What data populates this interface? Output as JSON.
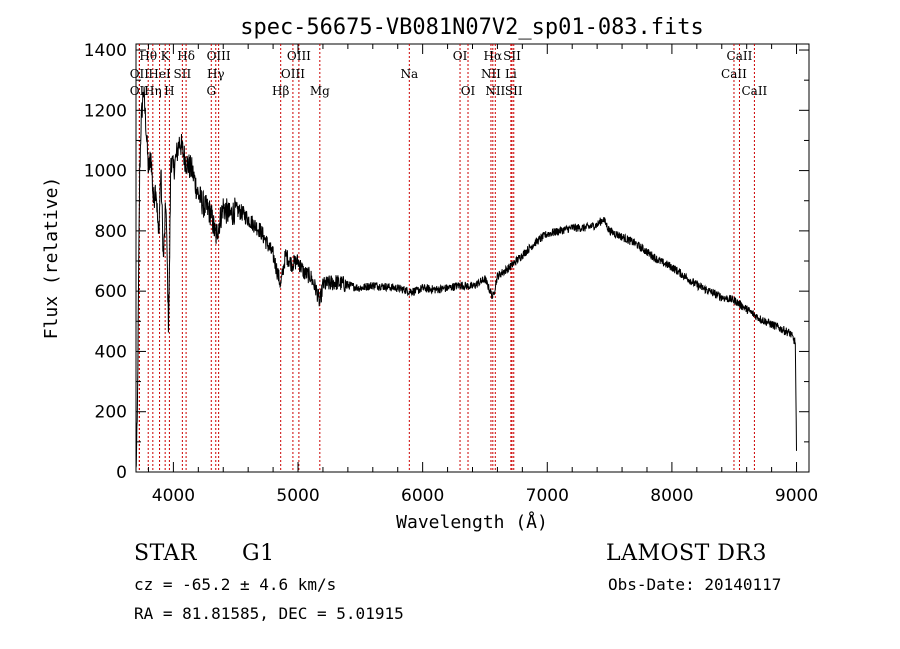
{
  "chart_data": {
    "type": "line",
    "title": "spec-56675-VB081N07V2_sp01-083.fits",
    "xlabel": "Wavelength (Å)",
    "ylabel": "Flux (relative)",
    "xlim": [
      3700,
      9100
    ],
    "ylim": [
      0,
      1420
    ],
    "xticks": [
      4000,
      5000,
      6000,
      7000,
      8000,
      9000
    ],
    "yticks": [
      0,
      200,
      400,
      600,
      800,
      1000,
      1200,
      1400
    ],
    "series": [
      {
        "name": "spectrum",
        "x": [
          3700,
          3710,
          3720,
          3730,
          3740,
          3760,
          3780,
          3800,
          3820,
          3840,
          3860,
          3880,
          3900,
          3920,
          3940,
          3960,
          3968,
          3980,
          4000,
          4050,
          4100,
          4150,
          4200,
          4250,
          4300,
          4340,
          4400,
          4450,
          4500,
          4550,
          4600,
          4650,
          4700,
          4750,
          4800,
          4861,
          4900,
          4950,
          5000,
          5050,
          5100,
          5150,
          5175,
          5200,
          5300,
          5400,
          5500,
          5600,
          5700,
          5800,
          5893,
          5950,
          6000,
          6100,
          6200,
          6300,
          6400,
          6500,
          6563,
          6600,
          6700,
          6800,
          6900,
          7000,
          7100,
          7200,
          7300,
          7400,
          7450,
          7500,
          7600,
          7700,
          7800,
          7900,
          8000,
          8100,
          8200,
          8300,
          8400,
          8500,
          8600,
          8700,
          8800,
          8900,
          8950,
          8990,
          9000
        ],
        "y": [
          0,
          150,
          600,
          1000,
          1150,
          1270,
          1150,
          1000,
          1050,
          900,
          950,
          780,
          1000,
          700,
          900,
          500,
          650,
          1050,
          1000,
          1100,
          1030,
          1000,
          920,
          880,
          860,
          780,
          880,
          850,
          870,
          860,
          840,
          820,
          800,
          760,
          720,
          620,
          720,
          690,
          700,
          660,
          650,
          600,
          560,
          620,
          630,
          620,
          610,
          620,
          615,
          610,
          600,
          600,
          610,
          605,
          610,
          620,
          615,
          640,
          580,
          650,
          680,
          720,
          760,
          790,
          800,
          810,
          810,
          820,
          840,
          800,
          780,
          760,
          730,
          700,
          680,
          650,
          620,
          600,
          580,
          570,
          540,
          510,
          490,
          470,
          460,
          430,
          70
        ]
      }
    ],
    "lines": [
      {
        "label": "Hθ",
        "wave": 3798,
        "row": 1
      },
      {
        "label": "OII",
        "wave": 3727,
        "row": 3
      },
      {
        "label": "OII",
        "wave": 3727,
        "row": 2
      },
      {
        "label": "Hη",
        "wave": 3835,
        "row": 3
      },
      {
        "label": "HeI",
        "wave": 3889,
        "row": 2
      },
      {
        "label": "K",
        "wave": 3934,
        "row": 1
      },
      {
        "label": "H",
        "wave": 3968,
        "row": 3
      },
      {
        "label": "SII",
        "wave": 4072,
        "row": 2
      },
      {
        "label": "Hδ",
        "wave": 4102,
        "row": 1
      },
      {
        "label": "OIII",
        "wave": 4363,
        "row": 1
      },
      {
        "label": "Hγ",
        "wave": 4340,
        "row": 2
      },
      {
        "label": "G",
        "wave": 4304,
        "row": 3
      },
      {
        "label": "Hβ",
        "wave": 4861,
        "row": 3
      },
      {
        "label": "OIII",
        "wave": 4959,
        "row": 2
      },
      {
        "label": "OIII",
        "wave": 5007,
        "row": 1
      },
      {
        "label": "Mg",
        "wave": 5175,
        "row": 3
      },
      {
        "label": "Na",
        "wave": 5893,
        "row": 2
      },
      {
        "label": "OI",
        "wave": 6300,
        "row": 1
      },
      {
        "label": "OI",
        "wave": 6364,
        "row": 3
      },
      {
        "label": "Hα",
        "wave": 6563,
        "row": 1
      },
      {
        "label": "NII",
        "wave": 6548,
        "row": 2
      },
      {
        "label": "NII",
        "wave": 6583,
        "row": 3
      },
      {
        "label": "SII",
        "wave": 6717,
        "row": 1
      },
      {
        "label": "Li",
        "wave": 6708,
        "row": 2
      },
      {
        "label": "SII",
        "wave": 6731,
        "row": 3
      },
      {
        "label": "CaII",
        "wave": 8498,
        "row": 2
      },
      {
        "label": "CaII",
        "wave": 8542,
        "row": 1
      },
      {
        "label": "CaII",
        "wave": 8662,
        "row": 3
      }
    ],
    "colors": {
      "spectrum": "#000000",
      "lines": "#cc0000"
    }
  },
  "info": {
    "object": "STAR",
    "subclass": "G1",
    "survey": "LAMOST DR3",
    "cz": "cz = -65.2 ± 4.6 km/s",
    "obsdate": "Obs-Date: 20140117",
    "radec": "RA =  81.81585, DEC =   5.01915"
  }
}
